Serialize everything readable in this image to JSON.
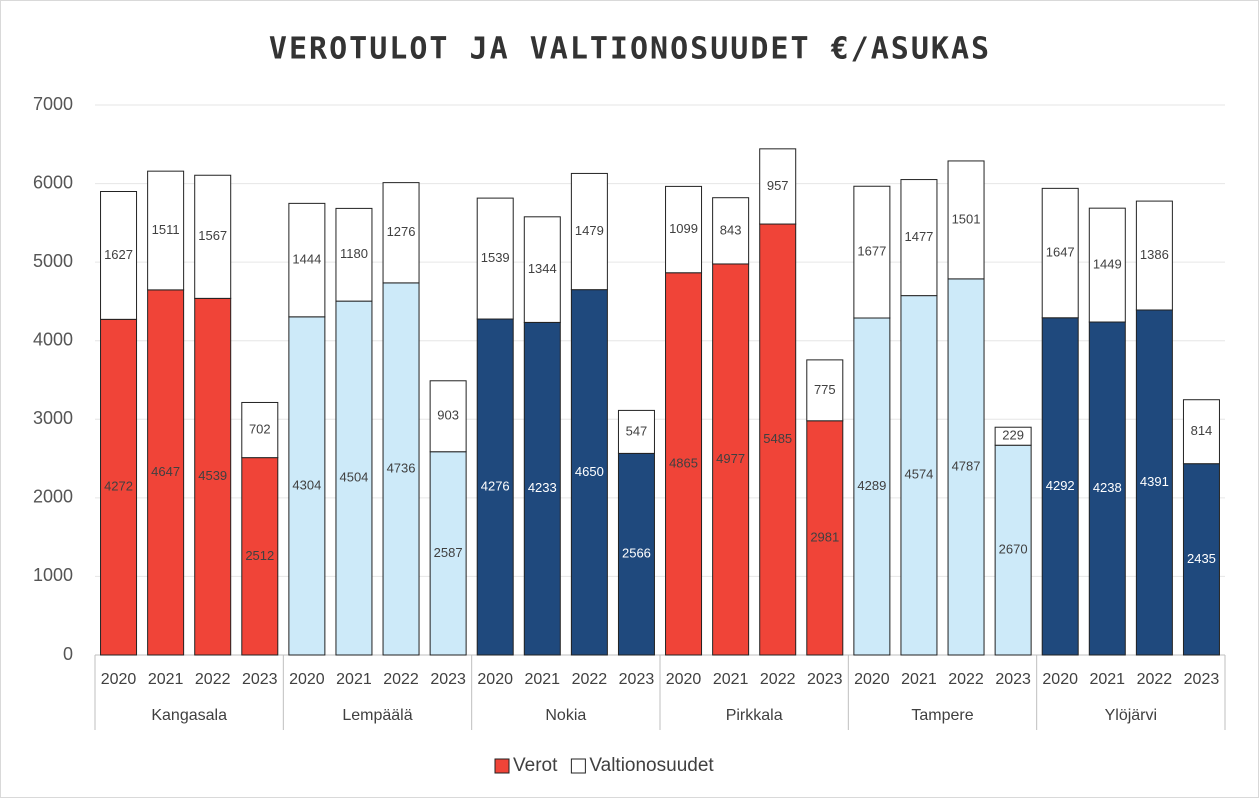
{
  "chart_data": {
    "type": "stacked_bar",
    "title": "VEROTULOT JA VALTIONOSUUDET €/ASUKAS",
    "categories": [
      "2020",
      "2021",
      "2022",
      "2023",
      "2020",
      "2021",
      "2022",
      "2023",
      "2020",
      "2021",
      "2022",
      "2023",
      "2020",
      "2021",
      "2022",
      "2023",
      "2020",
      "2021",
      "2022",
      "2023",
      "2020",
      "2021",
      "2022",
      "2023"
    ],
    "groups": [
      {
        "name": "Kangasala",
        "color": "#f04438"
      },
      {
        "name": "Lempäälä",
        "color": "#cdeaf9"
      },
      {
        "name": "Nokia",
        "color": "#1f497d"
      },
      {
        "name": "Pirkkala",
        "color": "#f04438"
      },
      {
        "name": "Tampere",
        "color": "#cdeaf9"
      },
      {
        "name": "Ylöjärvi",
        "color": "#1f497d"
      }
    ],
    "series": [
      {
        "name": "Verot",
        "color": "#f04438",
        "values": [
          4272,
          4647,
          4539,
          2512,
          4304,
          4504,
          4736,
          2587,
          4276,
          4233,
          4650,
          2566,
          4865,
          4977,
          5485,
          2981,
          4289,
          4574,
          4787,
          2670,
          4292,
          4238,
          4391,
          2435
        ]
      },
      {
        "name": "Valtionosuudet",
        "color": "#ffffff",
        "values": [
          1627,
          1511,
          1567,
          702,
          1444,
          1180,
          1276,
          903,
          1539,
          1344,
          1479,
          547,
          1099,
          843,
          957,
          775,
          1677,
          1477,
          1501,
          229,
          1647,
          1449,
          1386,
          814
        ]
      }
    ],
    "ylim": [
      0,
      7000
    ],
    "yticks": [
      0,
      1000,
      2000,
      3000,
      4000,
      5000,
      6000,
      7000
    ],
    "grid": true,
    "legend": "bottom"
  }
}
